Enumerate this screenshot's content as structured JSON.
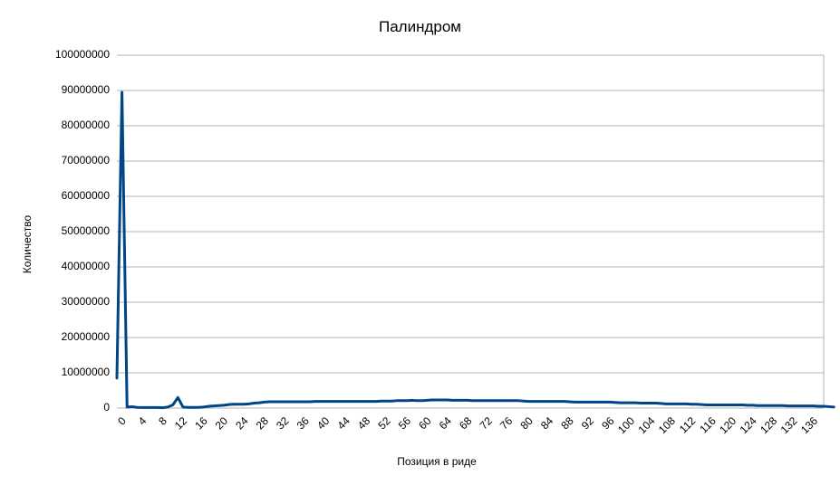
{
  "chart_data": {
    "type": "line",
    "title": "Палиндром",
    "xlabel": "Позиция в риде",
    "ylabel": "Количество",
    "ylim": [
      0,
      100000000
    ],
    "xlim": [
      0,
      139
    ],
    "grid": true,
    "legend": "none",
    "y_ticks": [
      0,
      10000000,
      20000000,
      30000000,
      40000000,
      50000000,
      60000000,
      70000000,
      80000000,
      90000000,
      100000000
    ],
    "x_ticks": [
      0,
      4,
      8,
      12,
      16,
      20,
      24,
      28,
      32,
      36,
      40,
      44,
      48,
      52,
      56,
      60,
      64,
      68,
      72,
      76,
      80,
      84,
      88,
      92,
      96,
      100,
      104,
      108,
      112,
      116,
      120,
      124,
      128,
      132,
      136
    ],
    "series": [
      {
        "color": "#004586",
        "values": [
          8500000,
          89500000,
          300000,
          400000,
          200000,
          150000,
          150000,
          150000,
          150000,
          100000,
          300000,
          900000,
          3000000,
          300000,
          200000,
          200000,
          200000,
          300000,
          500000,
          600000,
          700000,
          800000,
          1000000,
          1100000,
          1100000,
          1100000,
          1200000,
          1400000,
          1500000,
          1700000,
          1800000,
          1800000,
          1800000,
          1800000,
          1800000,
          1800000,
          1800000,
          1800000,
          1800000,
          1900000,
          1900000,
          1900000,
          1900000,
          1900000,
          1900000,
          1900000,
          1900000,
          1900000,
          1900000,
          1900000,
          1900000,
          1900000,
          2000000,
          2000000,
          2000000,
          2100000,
          2100000,
          2100000,
          2200000,
          2100000,
          2100000,
          2200000,
          2300000,
          2300000,
          2300000,
          2300000,
          2200000,
          2200000,
          2200000,
          2200000,
          2100000,
          2100000,
          2100000,
          2100000,
          2100000,
          2100000,
          2100000,
          2100000,
          2100000,
          2100000,
          2000000,
          1900000,
          1900000,
          1900000,
          1900000,
          1900000,
          1900000,
          1900000,
          1900000,
          1800000,
          1700000,
          1700000,
          1700000,
          1700000,
          1700000,
          1700000,
          1700000,
          1700000,
          1600000,
          1500000,
          1500000,
          1500000,
          1500000,
          1400000,
          1400000,
          1400000,
          1400000,
          1300000,
          1200000,
          1200000,
          1200000,
          1200000,
          1200000,
          1100000,
          1100000,
          1000000,
          900000,
          900000,
          900000,
          900000,
          900000,
          900000,
          900000,
          900000,
          800000,
          800000,
          700000,
          700000,
          700000,
          700000,
          700000,
          700000,
          600000,
          600000,
          600000,
          600000,
          600000,
          600000,
          500000,
          500000,
          400000,
          300000
        ]
      }
    ]
  }
}
